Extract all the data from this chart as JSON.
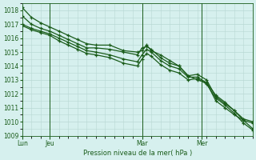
{
  "title": "Pression niveau de la mer( hPa )",
  "background_color": "#d6f0ee",
  "grid_color": "#b8d8d4",
  "line_color": "#1a5c1a",
  "marker_color": "#1a5c1a",
  "ylim": [
    1009,
    1018.5
  ],
  "yticks": [
    1009,
    1010,
    1011,
    1012,
    1013,
    1014,
    1015,
    1016,
    1017,
    1018
  ],
  "xlabel": "Pression niveau de la mer( hPa )",
  "day_labels": [
    "Lun",
    "Jeu",
    "Mar",
    "Mer"
  ],
  "day_positions": [
    0.0,
    0.12,
    0.52,
    0.78
  ],
  "xlim": [
    0.0,
    1.0
  ],
  "series": [
    {
      "x": [
        0.0,
        0.04,
        0.08,
        0.12,
        0.16,
        0.2,
        0.24,
        0.28,
        0.32,
        0.38,
        0.44,
        0.5,
        0.52,
        0.54,
        0.56,
        0.6,
        0.64,
        0.68,
        0.72,
        0.76,
        0.8,
        0.84,
        0.88,
        0.92,
        0.96,
        1.0
      ],
      "y": [
        1018.2,
        1017.5,
        1017.1,
        1016.8,
        1016.5,
        1016.2,
        1015.9,
        1015.6,
        1015.5,
        1015.5,
        1015.1,
        1015.0,
        1015.1,
        1015.5,
        1015.1,
        1014.8,
        1014.4,
        1014.0,
        1013.3,
        1013.0,
        1012.8,
        1011.5,
        1011.0,
        1010.5,
        1010.1,
        1009.9
      ]
    },
    {
      "x": [
        0.0,
        0.04,
        0.08,
        0.12,
        0.16,
        0.2,
        0.24,
        0.28,
        0.32,
        0.38,
        0.44,
        0.5,
        0.52,
        0.54,
        0.56,
        0.6,
        0.64,
        0.68,
        0.72,
        0.76,
        0.8,
        0.84,
        0.88,
        0.92,
        0.96,
        1.0
      ],
      "y": [
        1017.6,
        1017.0,
        1016.7,
        1016.5,
        1016.2,
        1015.9,
        1015.6,
        1015.3,
        1015.3,
        1015.2,
        1015.0,
        1014.8,
        1015.3,
        1015.4,
        1015.2,
        1014.6,
        1014.2,
        1014.0,
        1013.3,
        1013.4,
        1013.0,
        1011.8,
        1011.3,
        1010.8,
        1010.2,
        1010.0
      ]
    },
    {
      "x": [
        0.0,
        0.04,
        0.08,
        0.12,
        0.16,
        0.2,
        0.24,
        0.28,
        0.32,
        0.38,
        0.44,
        0.5,
        0.52,
        0.54,
        0.56,
        0.6,
        0.64,
        0.68,
        0.72,
        0.76,
        0.8,
        0.84,
        0.88,
        0.92,
        0.96,
        1.0
      ],
      "y": [
        1017.0,
        1016.7,
        1016.5,
        1016.3,
        1016.0,
        1015.7,
        1015.4,
        1015.1,
        1015.0,
        1014.8,
        1014.5,
        1014.3,
        1014.8,
        1015.2,
        1015.0,
        1014.4,
        1014.0,
        1013.8,
        1013.2,
        1013.2,
        1012.8,
        1011.9,
        1011.4,
        1010.8,
        1010.1,
        1009.5
      ]
    },
    {
      "x": [
        0.0,
        0.04,
        0.08,
        0.12,
        0.16,
        0.2,
        0.24,
        0.28,
        0.32,
        0.38,
        0.44,
        0.5,
        0.52,
        0.54,
        0.56,
        0.6,
        0.64,
        0.68,
        0.72,
        0.76,
        0.8,
        0.84,
        0.88,
        0.92,
        0.96,
        1.0
      ],
      "y": [
        1016.9,
        1016.6,
        1016.4,
        1016.2,
        1015.8,
        1015.5,
        1015.2,
        1014.9,
        1014.8,
        1014.6,
        1014.2,
        1014.0,
        1014.5,
        1014.9,
        1014.7,
        1014.1,
        1013.7,
        1013.5,
        1013.0,
        1013.1,
        1012.7,
        1011.7,
        1011.2,
        1010.6,
        1009.9,
        1009.4
      ]
    }
  ],
  "vline_positions": [
    0.12,
    0.52,
    0.78
  ],
  "marker_size": 3.5,
  "line_width": 0.9
}
